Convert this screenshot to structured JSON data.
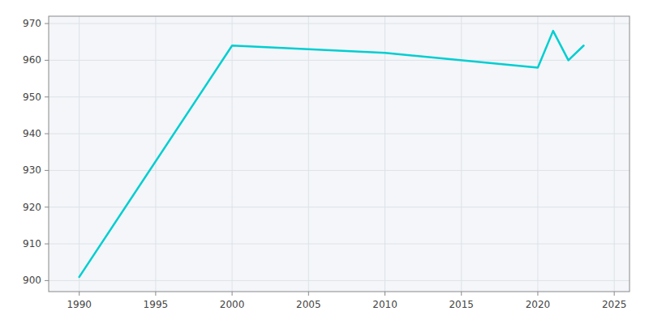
{
  "chart_data": {
    "type": "line",
    "x": [
      1990,
      2000,
      2010,
      2020,
      2021,
      2022,
      2023
    ],
    "values": [
      901,
      964,
      962,
      958,
      968,
      960,
      964
    ],
    "color": "#00CED1",
    "xlim": [
      1988,
      2026
    ],
    "ylim": [
      897,
      972
    ],
    "xticks": [
      1990,
      1995,
      2000,
      2005,
      2010,
      2015,
      2020,
      2025
    ],
    "yticks": [
      900,
      910,
      920,
      930,
      940,
      950,
      960,
      970
    ],
    "grid": true
  }
}
